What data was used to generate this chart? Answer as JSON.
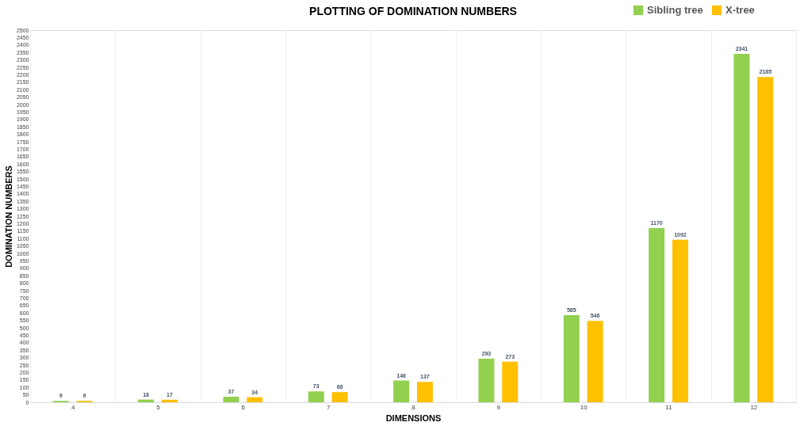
{
  "chart_data": {
    "type": "bar",
    "title": "PLOTTING OF DOMINATION NUMBERS",
    "xlabel": "DIMENSIONS",
    "ylabel": "DOMINATION NUMBERS",
    "categories": [
      "4",
      "5",
      "6",
      "7",
      "8",
      "9",
      "10",
      "11",
      "12"
    ],
    "series": [
      {
        "name": "Sibling tree",
        "color": "#92d050",
        "values": [
          9,
          18,
          37,
          73,
          146,
          293,
          585,
          1170,
          2341
        ]
      },
      {
        "name": "X-tree",
        "color": "#ffc000",
        "values": [
          9,
          17,
          34,
          68,
          137,
          273,
          546,
          1092,
          2185
        ]
      }
    ],
    "ylim": [
      0,
      2500
    ],
    "yticks": [
      0,
      50,
      100,
      150,
      200,
      250,
      300,
      350,
      400,
      450,
      500,
      550,
      600,
      650,
      700,
      750,
      800,
      850,
      900,
      950,
      1000,
      1050,
      1100,
      1150,
      1200,
      1250,
      1300,
      1350,
      1400,
      1450,
      1500,
      1550,
      1600,
      1650,
      1700,
      1750,
      1800,
      1850,
      1900,
      1950,
      2000,
      2050,
      2100,
      2150,
      2200,
      2250,
      2300,
      2350,
      2400,
      2450,
      2500
    ],
    "grid": "x",
    "legend": "top right",
    "data_labels": true
  }
}
